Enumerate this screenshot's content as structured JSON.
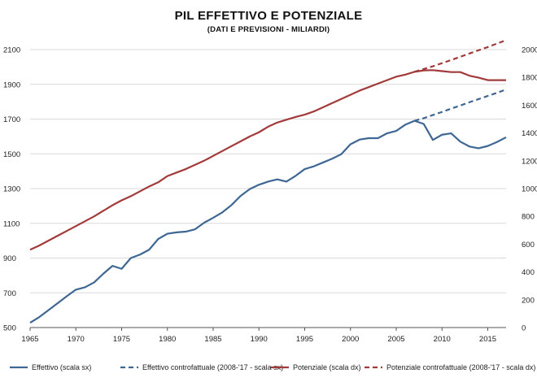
{
  "chart_data": {
    "type": "line",
    "title": "PIL EFFETTIVO E POTENZIALE",
    "subtitle": "(DATI E PREVISIONI - MILIARDI)",
    "xlabel": "",
    "ylabel_left": "",
    "ylabel_right": "",
    "xlim": [
      1965,
      2017
    ],
    "x_ticks": [
      1965,
      1970,
      1975,
      1980,
      1985,
      1990,
      1995,
      2000,
      2005,
      2010,
      2015
    ],
    "ylim_left": [
      500,
      2100
    ],
    "y_ticks_left": [
      500,
      700,
      900,
      1100,
      1300,
      1500,
      1700,
      1900,
      2100
    ],
    "ylim_right": [
      0,
      2000
    ],
    "y_ticks_right": [
      0,
      200,
      400,
      600,
      800,
      1000,
      1200,
      1400,
      1600,
      1800,
      2000
    ],
    "grid": true,
    "legend_position": "bottom",
    "series": [
      {
        "name": "Effettivo (scala sx)",
        "axis": "left",
        "style": "solid",
        "color": "#3e6794",
        "x": [
          1965,
          1966,
          1967,
          1968,
          1969,
          1970,
          1971,
          1972,
          1973,
          1974,
          1975,
          1976,
          1977,
          1978,
          1979,
          1980,
          1981,
          1982,
          1983,
          1984,
          1985,
          1986,
          1987,
          1988,
          1989,
          1990,
          1991,
          1992,
          1993,
          1994,
          1995,
          1996,
          1997,
          1998,
          1999,
          2000,
          2001,
          2002,
          2003,
          2004,
          2005,
          2006,
          2007,
          2008,
          2009,
          2010,
          2011,
          2012,
          2013,
          2014,
          2015,
          2016,
          2017
        ],
        "values": [
          528,
          560,
          600,
          640,
          680,
          718,
          732,
          760,
          810,
          855,
          838,
          900,
          920,
          948,
          1010,
          1040,
          1048,
          1052,
          1065,
          1103,
          1132,
          1163,
          1205,
          1258,
          1297,
          1322,
          1340,
          1353,
          1340,
          1373,
          1412,
          1428,
          1450,
          1472,
          1498,
          1555,
          1582,
          1590,
          1590,
          1618,
          1632,
          1668,
          1690,
          1672,
          1580,
          1610,
          1618,
          1570,
          1542,
          1532,
          1545,
          1568,
          1595
        ]
      },
      {
        "name": "Effettivo controfattuale (2008-'17 - scala sx)",
        "axis": "left",
        "style": "dashed",
        "color": "#3e6794",
        "x": [
          2007,
          2008,
          2009,
          2010,
          2011,
          2012,
          2013,
          2014,
          2015,
          2016,
          2017
        ],
        "values": [
          1690,
          1705,
          1723,
          1741,
          1760,
          1778,
          1797,
          1815,
          1833,
          1851,
          1870
        ]
      },
      {
        "name": "Potenziale (scala dx)",
        "axis": "right",
        "style": "solid",
        "color": "#a33a3a",
        "x": [
          1965,
          1966,
          1967,
          1968,
          1969,
          1970,
          1971,
          1972,
          1973,
          1974,
          1975,
          1976,
          1977,
          1978,
          1979,
          1980,
          1981,
          1982,
          1983,
          1984,
          1985,
          1986,
          1987,
          1988,
          1989,
          1990,
          1991,
          1992,
          1993,
          1994,
          1995,
          1996,
          1997,
          1998,
          1999,
          2000,
          2001,
          2002,
          2003,
          2004,
          2005,
          2006,
          2007,
          2008,
          2009,
          2010,
          2011,
          2012,
          2013,
          2014,
          2015,
          2016,
          2017
        ],
        "values": [
          560,
          590,
          625,
          660,
          695,
          730,
          765,
          800,
          840,
          880,
          915,
          945,
          980,
          1015,
          1045,
          1090,
          1115,
          1140,
          1170,
          1200,
          1235,
          1270,
          1305,
          1340,
          1375,
          1405,
          1445,
          1475,
          1495,
          1515,
          1532,
          1555,
          1585,
          1615,
          1645,
          1675,
          1705,
          1730,
          1755,
          1780,
          1805,
          1820,
          1840,
          1850,
          1852,
          1845,
          1838,
          1838,
          1812,
          1798,
          1780,
          1780,
          1780
        ]
      },
      {
        "name": "Potenziale controfattuale (2008-'17 - scala dx)",
        "axis": "right",
        "style": "dashed",
        "color": "#a33a3a",
        "x": [
          2007,
          2008,
          2009,
          2010,
          2011,
          2012,
          2013,
          2014,
          2015,
          2016,
          2017
        ],
        "values": [
          1840,
          1860,
          1880,
          1902,
          1925,
          1948,
          1972,
          1995,
          2018,
          2043,
          2068
        ]
      }
    ]
  }
}
